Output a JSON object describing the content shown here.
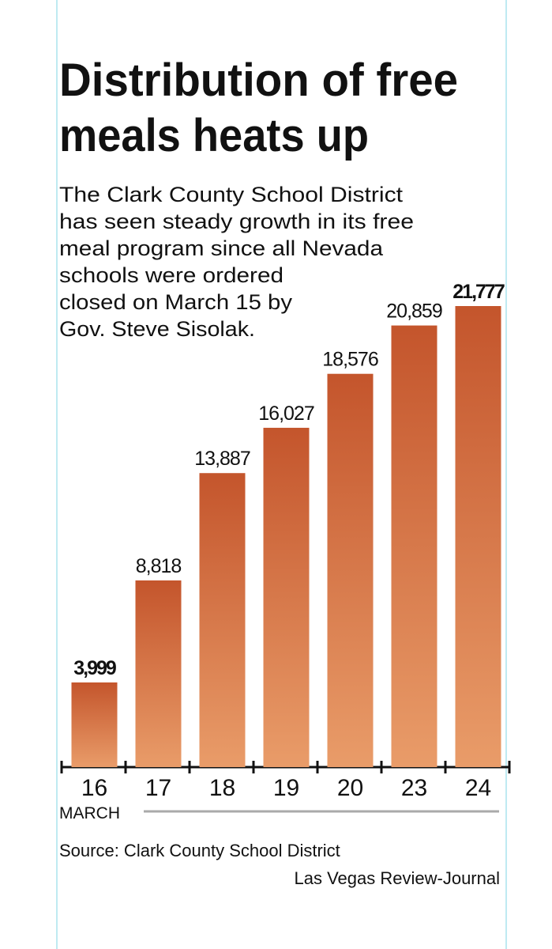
{
  "chart_data": {
    "type": "bar",
    "title": [
      "Distribution of free",
      "meals heats up"
    ],
    "description": [
      "The Clark County School District",
      "has seen steady growth in its free",
      "meal program since all Nevada",
      "schools were ordered",
      "closed on March 15 by",
      "Gov. Steve Sisolak."
    ],
    "categories": [
      "16",
      "17",
      "18",
      "19",
      "20",
      "23",
      "24"
    ],
    "x_label": "MARCH",
    "values": [
      3999,
      8818,
      13887,
      16027,
      18576,
      20859,
      21777
    ],
    "value_labels": [
      "3,999",
      "8,818",
      "13,887",
      "16,027",
      "18,576",
      "20,859",
      "21,777"
    ],
    "color": "#c4552c",
    "source": "Source: Clark County School District",
    "credit": "Las Vegas Review-Journal"
  }
}
